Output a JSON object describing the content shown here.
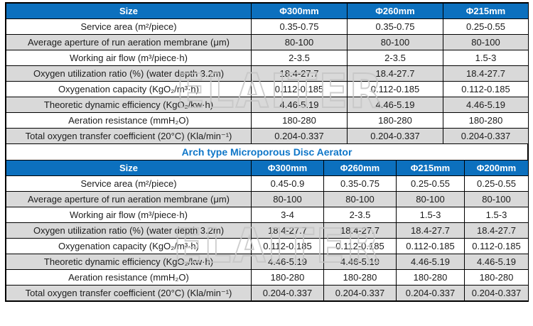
{
  "colors": {
    "header_bg": "#0c70be",
    "title_text": "#0e76c8",
    "alt_row_bg": "#d9d9d9",
    "border": "#000000",
    "watermark": "#c6c6c6"
  },
  "watermark": {
    "text": "ELAITER"
  },
  "section_title": "Arch type Microporous Disc Aerator",
  "table1": {
    "columns": [
      "Size",
      "Φ300mm",
      "Φ260mm",
      "Φ215mm"
    ],
    "rows": [
      {
        "label": "Service area (m²/piece)",
        "values": [
          "0.35-0.75",
          "0.35-0.75",
          "0.25-0.55"
        ]
      },
      {
        "label": "Average aperture of run aeration membrane (μm)",
        "values": [
          "80-100",
          "80-100",
          "80-100"
        ]
      },
      {
        "label": "Working air flow (m³/piece·h)",
        "values": [
          "2-3.5",
          "2-3.5",
          "1.5-3"
        ]
      },
      {
        "label": "Oxygen utilization ratio (%) (water depth 3.2m)",
        "values": [
          "18.4-27.7",
          "18.4-27.7",
          "18.4-27.7"
        ]
      },
      {
        "label": "Oxygenation capacity (KgO₂/m³·h)",
        "values": [
          "0.112-0.185",
          "0.112-0.185",
          "0.112-0.185"
        ]
      },
      {
        "label": "Theoretic dynamic efficiency (KgO₂/kw·h)",
        "values": [
          "4.46-5.19",
          "4.46-5.19",
          "4.46-5.19"
        ]
      },
      {
        "label": "Aeration resistance (mmH₂O)",
        "values": [
          "180-280",
          "180-280",
          "180-280"
        ]
      },
      {
        "label": "Total oxygen transfer coefficient (20°C) (Kla/min⁻¹)",
        "values": [
          "0.204-0.337",
          "0.204-0.337",
          "0.204-0.337"
        ]
      }
    ]
  },
  "table2": {
    "columns": [
      "Size",
      "Φ300mm",
      "Φ260mm",
      "Φ215mm",
      "Φ200mm"
    ],
    "rows": [
      {
        "label": "Service area (m²/piece)",
        "values": [
          "0.45-0.9",
          "0.35-0.75",
          "0.25-0.55",
          "0.25-0.55"
        ]
      },
      {
        "label": "Average aperture of run aeration membrane (μm)",
        "values": [
          "80-100",
          "80-100",
          "80-100",
          "80-100"
        ]
      },
      {
        "label": "Working air flow (m³/piece·h)",
        "values": [
          "3-4",
          "2-3.5",
          "1.5-3",
          "1.5-3"
        ]
      },
      {
        "label": "Oxygen utilization ratio (%) (water depth 3.2m)",
        "values": [
          "18.4-27.7",
          "18.4-27.7",
          "18.4-27.7",
          "18.4-27.7"
        ]
      },
      {
        "label": "Oxygenation capacity (KgO₂/m³·h)",
        "values": [
          "0.112-0.185",
          "0.112-0.185",
          "0.112-0.185",
          "0.112-0.185"
        ]
      },
      {
        "label": "Theoretic dynamic efficiency (KgO₂/kw·h)",
        "values": [
          "4.46-5.19",
          "4.46-5.19",
          "4.46-5.19",
          "4.46-5.19"
        ]
      },
      {
        "label": "Aeration resistance (mmH₂O)",
        "values": [
          "180-280",
          "180-280",
          "180-280",
          "180-280"
        ]
      },
      {
        "label": "Total oxygen transfer coefficient (20°C) (Kla/min⁻¹)",
        "values": [
          "0.204-0.337",
          "0.204-0.337",
          "0.204-0.337",
          "0.204-0.337"
        ]
      }
    ]
  }
}
